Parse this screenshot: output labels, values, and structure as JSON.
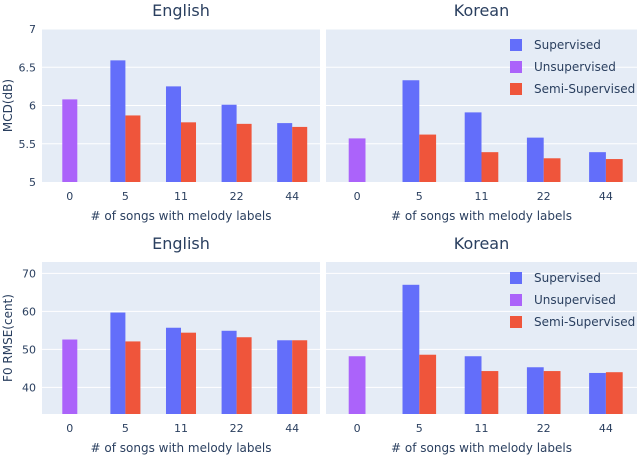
{
  "colors": {
    "panel_bg": "#E5ECF6",
    "grid": "#FFFFFF",
    "text": "#2A3F5F",
    "supervised": "#636EFA",
    "unsupervised": "#AB63FA",
    "semi_supervised": "#EF553B"
  },
  "chart_data": [
    {
      "type": "bar",
      "title": "English",
      "xlabel": "# of songs with melody labels",
      "ylabel": "MCD(dB)",
      "categories": [
        "0",
        "5",
        "11",
        "22",
        "44"
      ],
      "ylim": [
        5,
        7
      ],
      "yticks": [
        "5",
        "5.5",
        "6",
        "6.5",
        "7"
      ],
      "series": [
        {
          "name": "Supervised",
          "values": [
            null,
            6.59,
            6.25,
            6.01,
            5.77
          ]
        },
        {
          "name": "Unsupervised",
          "values": [
            6.08,
            null,
            null,
            null,
            null
          ]
        },
        {
          "name": "Semi-Supervised",
          "values": [
            null,
            5.87,
            5.78,
            5.76,
            5.72
          ]
        }
      ],
      "grid": true,
      "legend": "none"
    },
    {
      "type": "bar",
      "title": "Korean",
      "xlabel": "# of songs with melody labels",
      "ylabel": "",
      "categories": [
        "0",
        "5",
        "11",
        "22",
        "44"
      ],
      "ylim": [
        5,
        7
      ],
      "series": [
        {
          "name": "Supervised",
          "values": [
            null,
            6.33,
            5.91,
            5.58,
            5.39
          ]
        },
        {
          "name": "Unsupervised",
          "values": [
            5.57,
            null,
            null,
            null,
            null
          ]
        },
        {
          "name": "Semi-Supervised",
          "values": [
            null,
            5.62,
            5.39,
            5.31,
            5.3
          ]
        }
      ],
      "grid": true,
      "legend": "top-right"
    },
    {
      "type": "bar",
      "title": "English",
      "xlabel": "# of songs with melody labels",
      "ylabel": "F0 RMSE(cent)",
      "categories": [
        "0",
        "5",
        "11",
        "22",
        "44"
      ],
      "ylim": [
        33,
        73
      ],
      "yticks": [
        "40",
        "50",
        "60",
        "70"
      ],
      "series": [
        {
          "name": "Supervised",
          "values": [
            null,
            59.7,
            55.7,
            54.9,
            52.4
          ]
        },
        {
          "name": "Unsupervised",
          "values": [
            52.6,
            null,
            null,
            null,
            null
          ]
        },
        {
          "name": "Semi-Supervised",
          "values": [
            null,
            52.1,
            54.4,
            53.2,
            52.4
          ]
        }
      ],
      "grid": true,
      "legend": "none"
    },
    {
      "type": "bar",
      "title": "Korean",
      "xlabel": "# of songs with melody labels",
      "ylabel": "",
      "categories": [
        "0",
        "5",
        "11",
        "22",
        "44"
      ],
      "ylim": [
        33,
        73
      ],
      "series": [
        {
          "name": "Supervised",
          "values": [
            null,
            67.0,
            48.2,
            45.3,
            43.8
          ]
        },
        {
          "name": "Unsupervised",
          "values": [
            48.2,
            null,
            null,
            null,
            null
          ]
        },
        {
          "name": "Semi-Supervised",
          "values": [
            null,
            48.6,
            44.3,
            44.3,
            44.0
          ]
        }
      ],
      "grid": true,
      "legend": "top-right"
    }
  ]
}
